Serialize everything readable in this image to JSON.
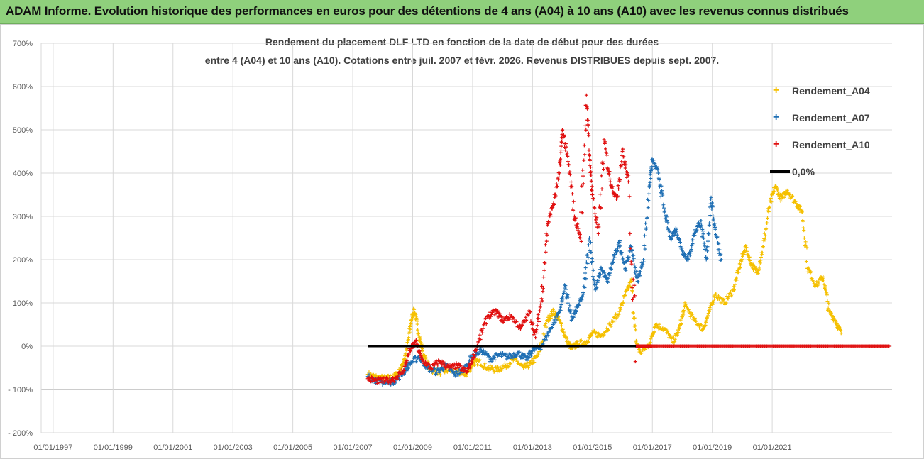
{
  "banner": {
    "text": "ADAM Informe. Evolution historique des performances en euros pour des détentions de 4 ans (A04) à 10 ans (A10) avec les revenus connus distribués",
    "color": "#8fd07c"
  },
  "chart_data": {
    "type": "scatter",
    "title_line1": "Rendement du placement DLF LTD en fonction de la date de début pour des durées",
    "title_line2": "entre 4 (A04) et 10 ans (A10). Cotations entre juil. 2007 et févr. 2026. Revenus DISTRIBUES depuis sept. 2007.",
    "xlabel": "",
    "ylabel": "",
    "x_tick_labels": [
      "01/01/1997",
      "01/01/1999",
      "01/01/2001",
      "01/01/2003",
      "01/01/2005",
      "01/01/2007",
      "01/01/2009",
      "01/01/2011",
      "01/01/2013",
      "01/01/2015",
      "01/01/2017",
      "01/01/2019",
      "01/01/2021"
    ],
    "x_tick_years": [
      1997,
      1999,
      2001,
      2003,
      2005,
      2007,
      2009,
      2011,
      2013,
      2015,
      2017,
      2019,
      2021
    ],
    "xlim_years": [
      1996.6,
      2025.0
    ],
    "y_tick_labels": [
      "700%",
      "600%",
      "500%",
      "400%",
      "300%",
      "200%",
      "100%",
      "0%",
      "- 100%",
      "- 200%"
    ],
    "y_tick_values": [
      700,
      600,
      500,
      400,
      300,
      200,
      100,
      0,
      -100,
      -200
    ],
    "ylim": [
      -200,
      700
    ],
    "grid": true,
    "legend_position": "right",
    "marker": "+",
    "series": [
      {
        "name": "Rendement_A04",
        "color": "#f5c000",
        "points": [
          [
            2007.5,
            -65
          ],
          [
            2007.8,
            -72
          ],
          [
            2008.1,
            -75
          ],
          [
            2008.4,
            -70
          ],
          [
            2008.6,
            -55
          ],
          [
            2008.8,
            -10
          ],
          [
            2008.95,
            60
          ],
          [
            2009.05,
            85
          ],
          [
            2009.2,
            30
          ],
          [
            2009.35,
            -20
          ],
          [
            2009.6,
            -55
          ],
          [
            2009.9,
            -60
          ],
          [
            2010.2,
            -55
          ],
          [
            2010.5,
            -60
          ],
          [
            2010.8,
            -65
          ],
          [
            2011.0,
            -40
          ],
          [
            2011.2,
            -35
          ],
          [
            2011.5,
            -50
          ],
          [
            2011.8,
            -55
          ],
          [
            2012.1,
            -45
          ],
          [
            2012.4,
            -30
          ],
          [
            2012.7,
            -50
          ],
          [
            2012.95,
            -40
          ],
          [
            2013.2,
            -20
          ],
          [
            2013.5,
            60
          ],
          [
            2013.7,
            80
          ],
          [
            2013.9,
            60
          ],
          [
            2014.1,
            20
          ],
          [
            2014.3,
            -5
          ],
          [
            2014.5,
            5
          ],
          [
            2014.8,
            10
          ],
          [
            2015.0,
            30
          ],
          [
            2015.3,
            25
          ],
          [
            2015.6,
            50
          ],
          [
            2015.9,
            80
          ],
          [
            2016.1,
            120
          ],
          [
            2016.3,
            150
          ],
          [
            2016.45,
            10
          ],
          [
            2016.6,
            -15
          ],
          [
            2016.9,
            5
          ],
          [
            2017.1,
            50
          ],
          [
            2017.4,
            40
          ],
          [
            2017.7,
            10
          ],
          [
            2017.9,
            40
          ],
          [
            2018.1,
            95
          ],
          [
            2018.4,
            60
          ],
          [
            2018.7,
            40
          ],
          [
            2018.9,
            80
          ],
          [
            2019.1,
            120
          ],
          [
            2019.4,
            100
          ],
          [
            2019.7,
            130
          ],
          [
            2019.9,
            180
          ],
          [
            2020.1,
            230
          ],
          [
            2020.3,
            190
          ],
          [
            2020.5,
            170
          ],
          [
            2020.7,
            230
          ],
          [
            2020.9,
            320
          ],
          [
            2021.1,
            370
          ],
          [
            2021.3,
            340
          ],
          [
            2021.5,
            360
          ],
          [
            2021.8,
            330
          ],
          [
            2022.0,
            310
          ],
          [
            2022.2,
            180
          ],
          [
            2022.45,
            140
          ],
          [
            2022.7,
            160
          ],
          [
            2022.9,
            80
          ],
          [
            2023.1,
            60
          ],
          [
            2023.3,
            30
          ]
        ]
      },
      {
        "name": "Rendement_A07",
        "color": "#1f6fb4",
        "points": [
          [
            2007.5,
            -70
          ],
          [
            2007.8,
            -80
          ],
          [
            2008.1,
            -85
          ],
          [
            2008.4,
            -80
          ],
          [
            2008.7,
            -60
          ],
          [
            2008.9,
            -40
          ],
          [
            2009.2,
            -25
          ],
          [
            2009.5,
            -50
          ],
          [
            2009.8,
            -60
          ],
          [
            2010.1,
            -45
          ],
          [
            2010.4,
            -65
          ],
          [
            2010.7,
            -55
          ],
          [
            2011.0,
            -20
          ],
          [
            2011.3,
            -10
          ],
          [
            2011.6,
            -30
          ],
          [
            2011.9,
            -20
          ],
          [
            2012.2,
            -25
          ],
          [
            2012.5,
            -15
          ],
          [
            2012.8,
            -30
          ],
          [
            2013.0,
            -10
          ],
          [
            2013.3,
            0
          ],
          [
            2013.6,
            40
          ],
          [
            2013.9,
            80
          ],
          [
            2014.1,
            140
          ],
          [
            2014.3,
            60
          ],
          [
            2014.5,
            90
          ],
          [
            2014.7,
            120
          ],
          [
            2014.9,
            250
          ],
          [
            2015.1,
            130
          ],
          [
            2015.3,
            180
          ],
          [
            2015.5,
            150
          ],
          [
            2015.7,
            200
          ],
          [
            2015.9,
            240
          ],
          [
            2016.1,
            180
          ],
          [
            2016.3,
            230
          ],
          [
            2016.5,
            150
          ],
          [
            2016.7,
            200
          ],
          [
            2016.9,
            370
          ],
          [
            2017.0,
            430
          ],
          [
            2017.2,
            400
          ],
          [
            2017.4,
            310
          ],
          [
            2017.6,
            250
          ],
          [
            2017.8,
            270
          ],
          [
            2018.0,
            220
          ],
          [
            2018.2,
            200
          ],
          [
            2018.4,
            260
          ],
          [
            2018.6,
            290
          ],
          [
            2018.8,
            200
          ],
          [
            2018.95,
            340
          ],
          [
            2019.1,
            270
          ],
          [
            2019.3,
            200
          ]
        ]
      },
      {
        "name": "Rendement_A10",
        "color": "#e01010",
        "points": [
          [
            2007.5,
            -75
          ],
          [
            2007.8,
            -80
          ],
          [
            2008.1,
            -80
          ],
          [
            2008.4,
            -75
          ],
          [
            2008.7,
            -55
          ],
          [
            2008.9,
            -10
          ],
          [
            2009.1,
            10
          ],
          [
            2009.3,
            -30
          ],
          [
            2009.6,
            -50
          ],
          [
            2009.9,
            -35
          ],
          [
            2010.2,
            -50
          ],
          [
            2010.5,
            -45
          ],
          [
            2010.8,
            -60
          ],
          [
            2011.0,
            -30
          ],
          [
            2011.2,
            10
          ],
          [
            2011.5,
            70
          ],
          [
            2011.8,
            80
          ],
          [
            2012.0,
            60
          ],
          [
            2012.3,
            70
          ],
          [
            2012.6,
            40
          ],
          [
            2012.9,
            80
          ],
          [
            2013.1,
            20
          ],
          [
            2013.3,
            110
          ],
          [
            2013.5,
            280
          ],
          [
            2013.7,
            330
          ],
          [
            2013.9,
            400
          ],
          [
            2014.0,
            500
          ],
          [
            2014.2,
            420
          ],
          [
            2014.4,
            300
          ],
          [
            2014.6,
            250
          ],
          [
            2014.8,
            580
          ],
          [
            2014.9,
            440
          ],
          [
            2015.0,
            350
          ],
          [
            2015.2,
            260
          ],
          [
            2015.4,
            470
          ],
          [
            2015.6,
            380
          ],
          [
            2015.8,
            340
          ],
          [
            2016.0,
            450
          ],
          [
            2016.2,
            380
          ],
          [
            2016.45,
            0
          ],
          [
            2017.0,
            0
          ],
          [
            2018.0,
            0
          ],
          [
            2019.0,
            0
          ],
          [
            2020.0,
            0
          ],
          [
            2021.0,
            0
          ],
          [
            2022.0,
            0
          ],
          [
            2023.0,
            0
          ],
          [
            2024.0,
            0
          ],
          [
            2024.9,
            0
          ]
        ]
      },
      {
        "name": "0,0%",
        "color": "#000000",
        "line": true,
        "points": [
          [
            2007.5,
            0
          ],
          [
            2016.45,
            0
          ]
        ]
      }
    ]
  }
}
